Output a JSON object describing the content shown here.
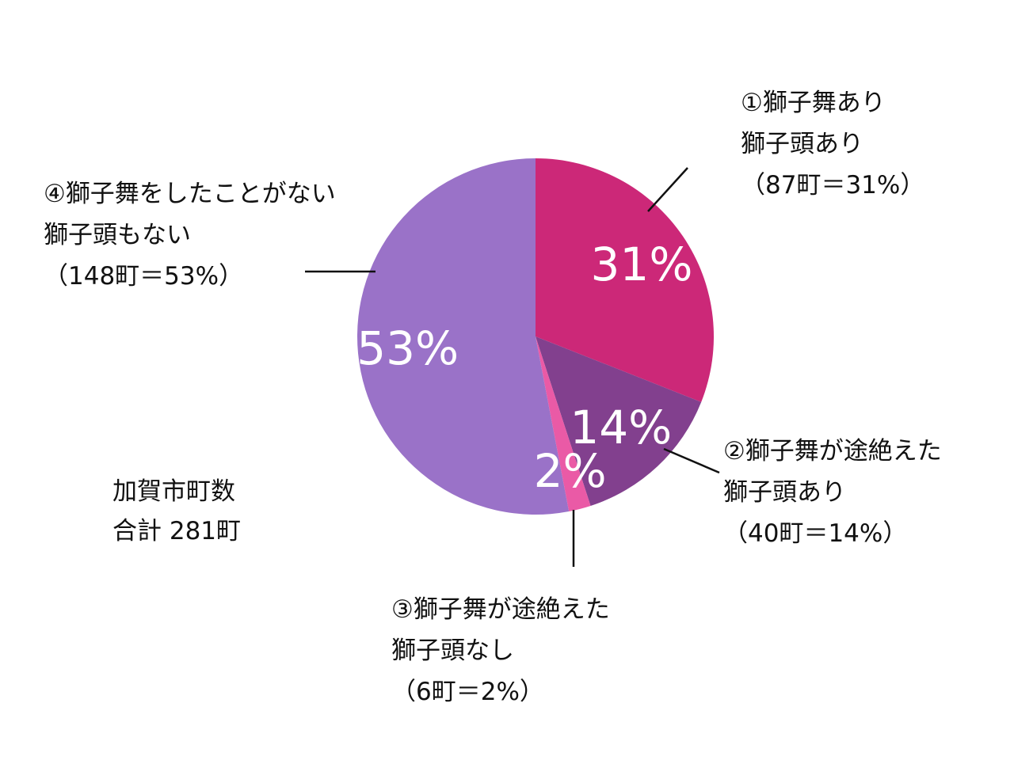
{
  "chart_data": {
    "type": "pie",
    "title": "",
    "slices": [
      {
        "label_lines": [
          "①獅子舞あり",
          "獅子頭あり",
          "（87町＝31%）"
        ],
        "count": 87,
        "value": 31,
        "percent_label": "31%",
        "color": "#cc2878"
      },
      {
        "label_lines": [
          "②獅子舞が途絶えた",
          "獅子頭あり",
          "（40町＝14%）"
        ],
        "count": 40,
        "value": 14,
        "percent_label": "14%",
        "color": "#82408e"
      },
      {
        "label_lines": [
          "③獅子舞が途絶えた",
          "獅子頭なし",
          "（6町＝2%）"
        ],
        "count": 6,
        "value": 2,
        "percent_label": "2%",
        "color": "#ea5aa6"
      },
      {
        "label_lines": [
          "④獅子舞をしたことがない",
          "獅子頭もない",
          "（148町＝53%）"
        ],
        "count": 148,
        "value": 53,
        "percent_label": "53%",
        "color": "#9a72c8"
      }
    ],
    "total": {
      "line1": "加賀市町数",
      "line2": "合計 281町"
    }
  }
}
